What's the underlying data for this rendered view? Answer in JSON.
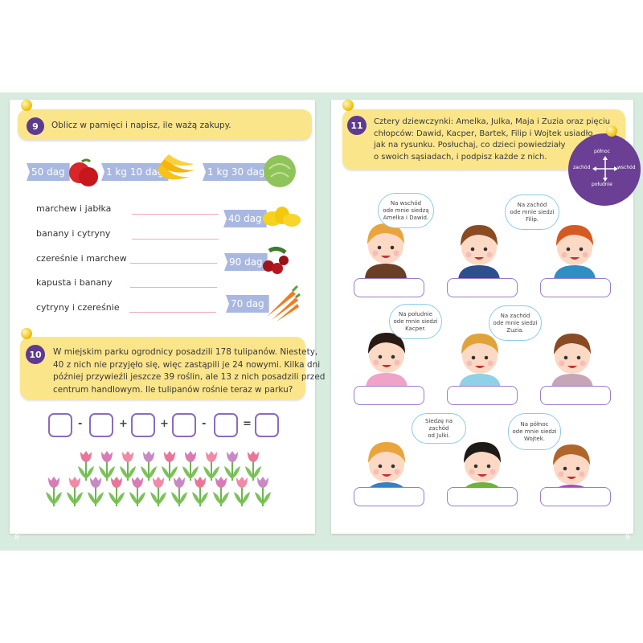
{
  "left_page": {
    "page_number": "8",
    "task9": {
      "number": "9",
      "instruction": "Oblicz w pamięci i napisz, ile ważą zakupy.",
      "prices": [
        {
          "label": "50 dag",
          "item": "apple"
        },
        {
          "label": "1 kg 10 dag",
          "item": "bananas"
        },
        {
          "label": "1 kg 30 dag",
          "item": "cabbage"
        },
        {
          "label": "40 dag",
          "item": "lemons"
        },
        {
          "label": "90 dag",
          "item": "cherries"
        },
        {
          "label": "70 dag",
          "item": "carrots"
        }
      ],
      "rows": [
        "marchew i jabłka",
        "banany i cytryny",
        "czereśnie i marchew",
        "kapusta i banany",
        "cytryny i czereśnie"
      ]
    },
    "task10": {
      "number": "10",
      "text": [
        "W miejskim parku ogrodnicy posadzili 178 tulipanów. Niestety,",
        "40 z nich nie przyjęło się, więc zastąpili je 24 nowymi. Kilka dni",
        "później przywieźli jeszcze 39 roślin, ale 13 z nich posadzili przed",
        "centrum handlowym. Ile tulipanów rośnie teraz w parku?"
      ],
      "operators": [
        "-",
        "+",
        "+",
        "-",
        "="
      ]
    }
  },
  "right_page": {
    "page_number": "9",
    "task11": {
      "number": "11",
      "text": [
        "Cztery dziewczynki: Amelka, Julka, Maja i Zuzia oraz pięciu",
        "chłopców: Dawid, Kacper, Bartek, Filip i Wojtek usiadło",
        "jak na rysunku. Posłuchaj, co dzieci powiedziały",
        "o swoich sąsiadach, i podpisz każde z nich."
      ]
    },
    "compass": {
      "north": "północ",
      "south": "południe",
      "west": "zachód",
      "east": "wschód"
    },
    "bubbles": [
      [
        "Na wschód",
        "ode mnie siedzą",
        "Amelka i Dawid."
      ],
      [
        "Na zachód",
        "ode mnie siedzi",
        "Filip."
      ],
      [
        "Na południe",
        "ode mnie siedzi",
        "Kacper."
      ],
      [
        "Na zachód",
        "ode mnie siedzi",
        "Zuzia."
      ],
      [
        "Siedzę na zachód",
        "od Julki."
      ],
      [
        "Na północ",
        "ode mnie siedzi",
        "Wojtek."
      ]
    ]
  },
  "colors": {
    "badge": "#5d3b8e",
    "banner": "#fbe58a",
    "tag": "#a9b8e0",
    "background": "#d8ebdf"
  }
}
